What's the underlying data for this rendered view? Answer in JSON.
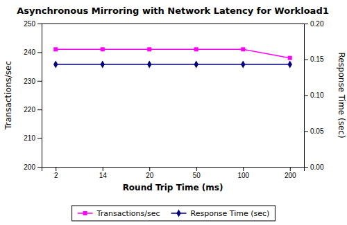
{
  "chart_data": {
    "type": "line",
    "title": "Asynchronous Mirroring with Network Latency for Workload1",
    "xlabel": "Round Trip Time (ms)",
    "ylabel": "Transactions/sec",
    "y2label": "Response Time (sec)",
    "categories": [
      "2",
      "14",
      "20",
      "50",
      "100",
      "200"
    ],
    "series": [
      {
        "name": "Transactions/sec",
        "color": "#FF00FF",
        "marker": "square",
        "values": [
          241,
          241,
          241,
          241,
          241,
          238
        ]
      },
      {
        "name": "Response Time (sec)",
        "color": "#000080",
        "marker": "diamond",
        "axis": "y2",
        "values": [
          0.143,
          0.143,
          0.143,
          0.143,
          0.143,
          0.143
        ]
      }
    ],
    "ylim": [
      200,
      250
    ],
    "yticks": [
      200,
      210,
      220,
      230,
      240,
      250
    ],
    "y2lim": [
      0,
      0.2
    ],
    "y2ticks": [
      {
        "value": 0,
        "label": "0.00"
      },
      {
        "value": 0.05,
        "label": "0.05"
      },
      {
        "value": 0.1,
        "label": "0.10"
      },
      {
        "value": 0.15,
        "label": "0.15"
      },
      {
        "value": 0.2,
        "label": "0.20"
      }
    ],
    "legend": "bottom",
    "grid": false
  }
}
